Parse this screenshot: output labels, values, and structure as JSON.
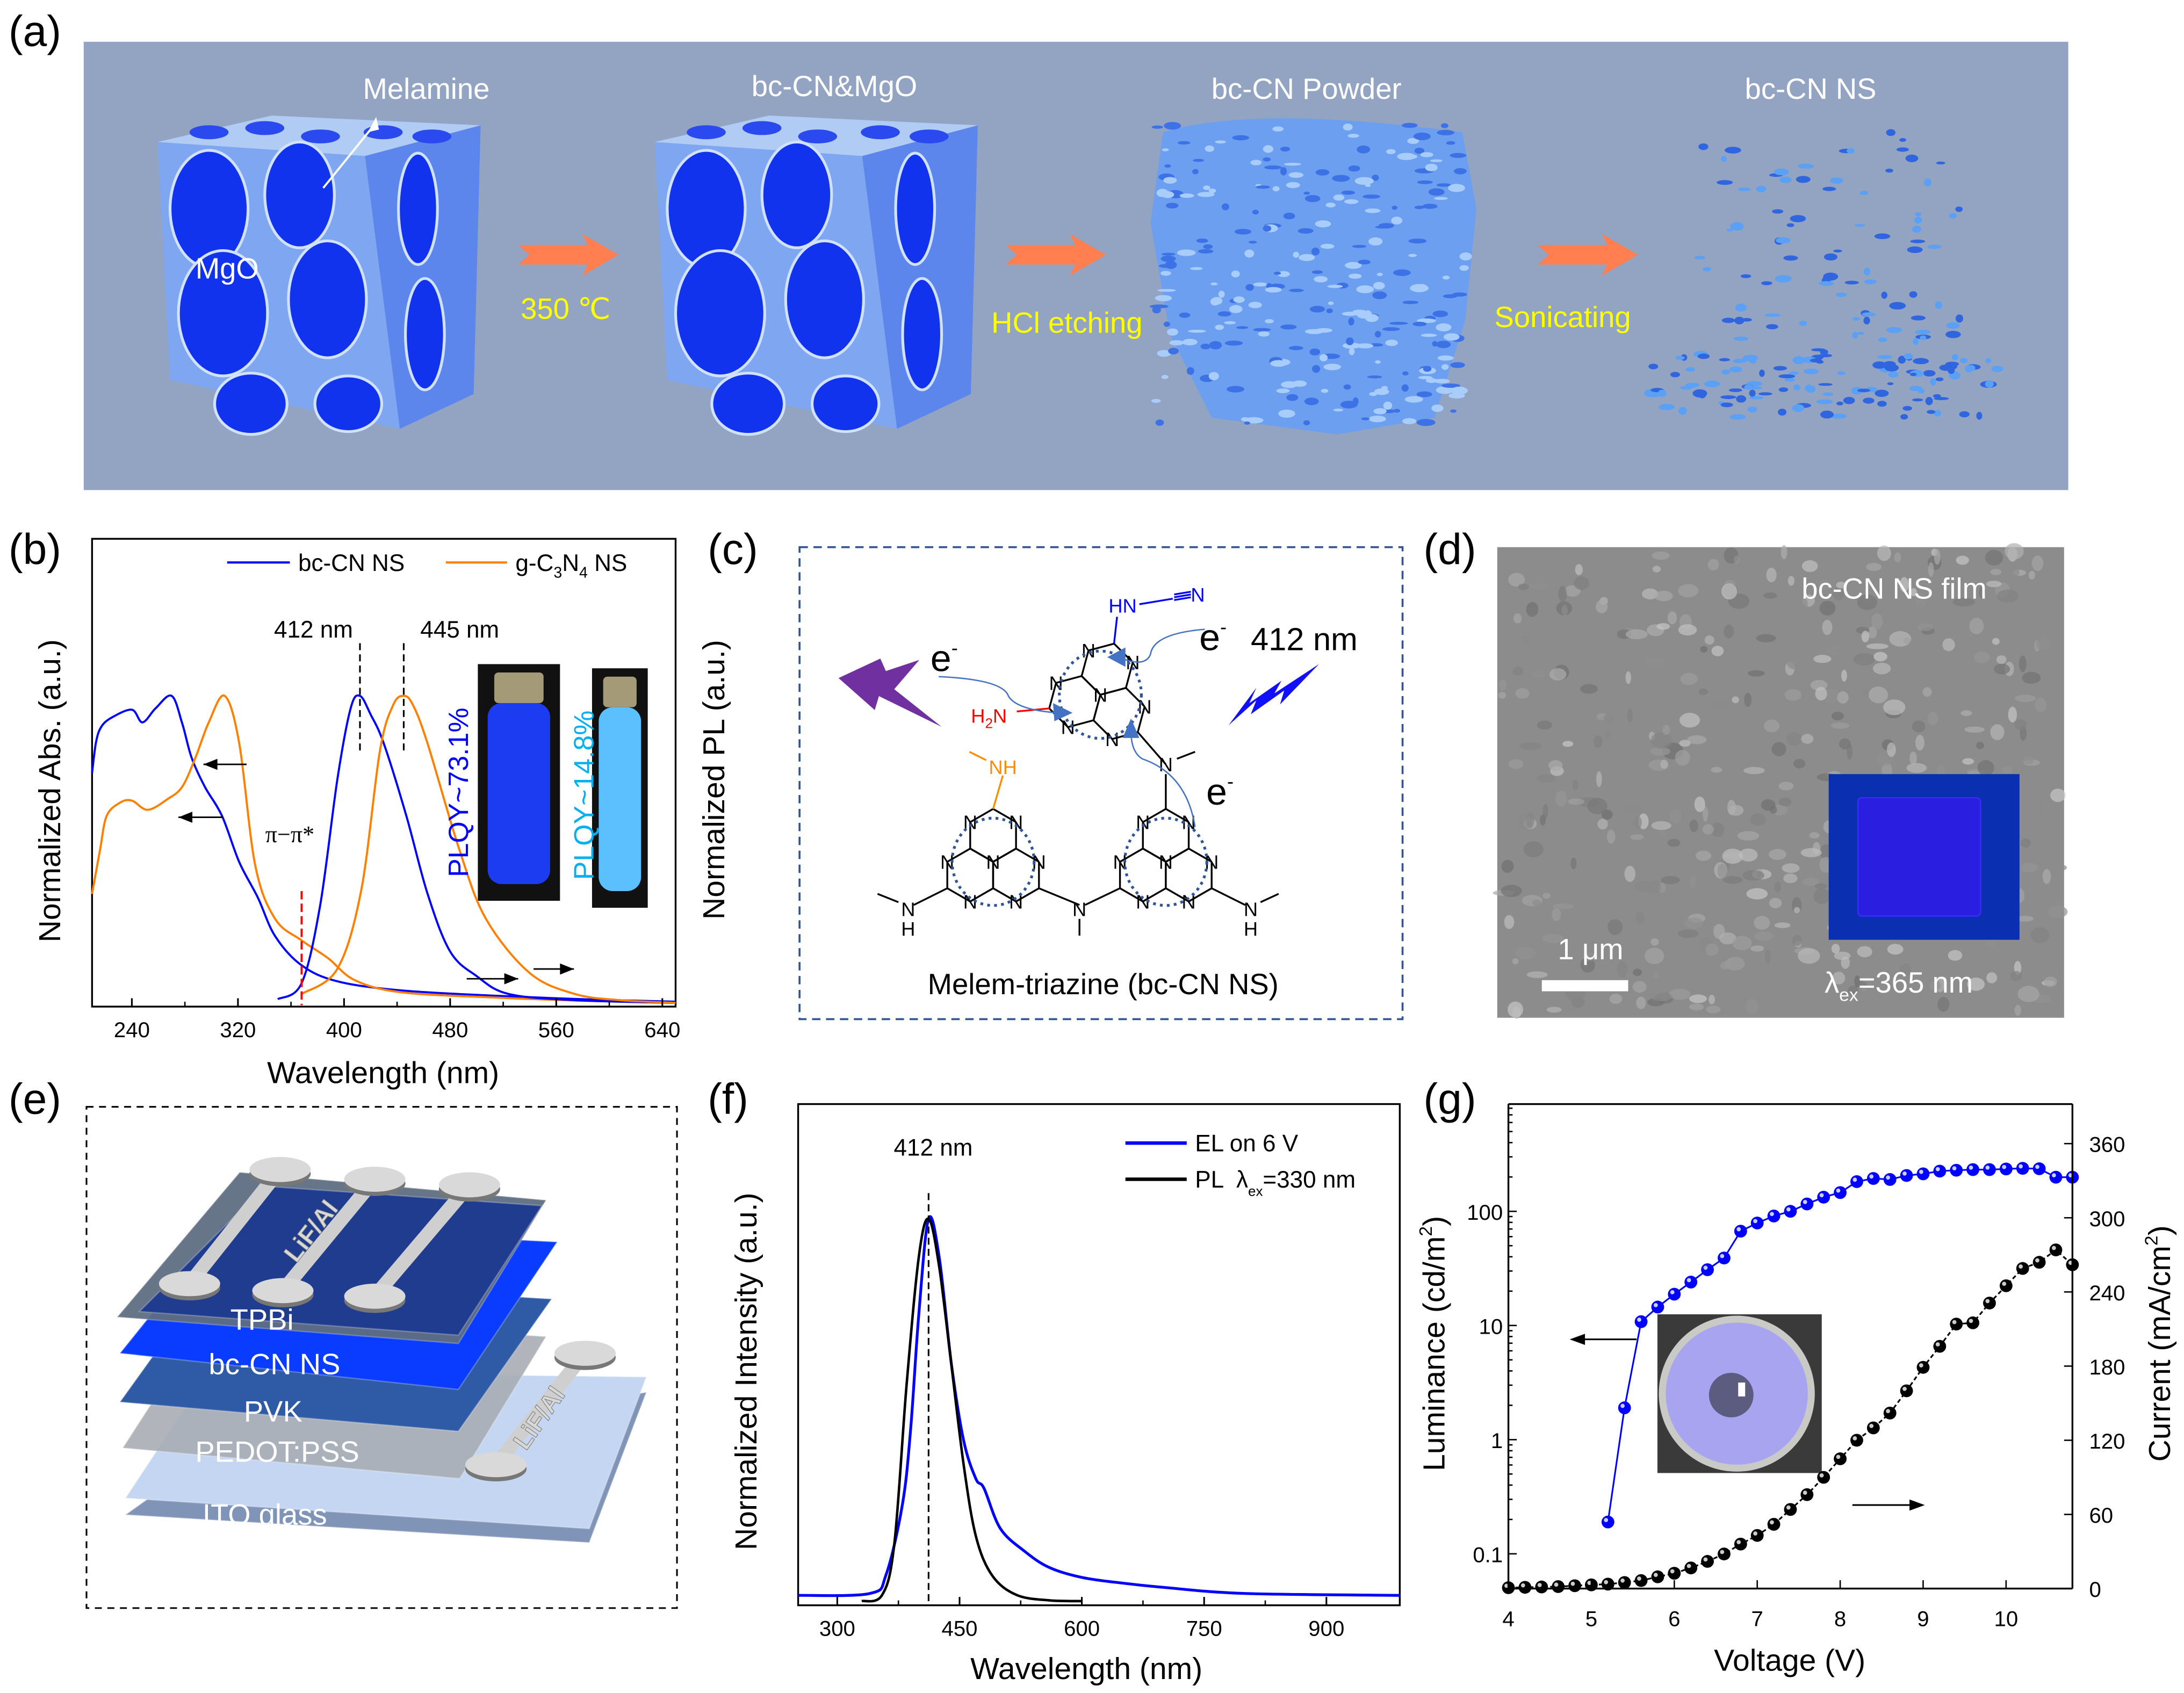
{
  "panel_labels": {
    "a": "(a)",
    "b": "(b)",
    "c": "(c)",
    "d": "(d)",
    "e": "(e)",
    "f": "(f)",
    "g": "(g)"
  },
  "panel_a": {
    "stages": [
      "Melamine",
      "bc-CN&MgO",
      "bc-CN Powder",
      "bc-CN NS"
    ],
    "mgo_label": "MgO",
    "steps": [
      "350 ℃",
      "HCl etching",
      "Sonicating"
    ],
    "colors": {
      "background": "#93a3c2",
      "step_text": "#ffff00",
      "arrow": "#ff7f50",
      "cube": "#1a3cf0"
    }
  },
  "panel_c": {
    "caption": "Melem-triazine (bc-CN NS)",
    "atom_N": "N",
    "atom_H": "H",
    "nh_label": "NH",
    "hn_label": "HN",
    "cyano_N": "N",
    "amine_H": "H",
    "amine_sub": "2",
    "amine_N": "N",
    "electron": "e",
    "electron_sup": "-",
    "emission": "412 nm",
    "colors": {
      "border": "#2f5597",
      "amine": "#ff0000",
      "nh": "#ff8c00",
      "cyano": "#0000ff",
      "excite_bolt": "#7030a0",
      "emit_bolt": "#1010ff"
    }
  },
  "panel_d": {
    "title": "bc-CN NS film",
    "scale_bar": "1 μm",
    "lambda": "λ",
    "lambda_sub": "ex",
    "lambda_value": "=365 nm"
  },
  "panel_e": {
    "layers": [
      "TPBi",
      "bc-CN NS",
      "PVK",
      "PEDOT:PSS",
      "ITO glass"
    ],
    "electrode": "LiF/Al"
  },
  "chart_data": [
    {
      "panel": "b",
      "type": "line",
      "xlabel": "Wavelength (nm)",
      "ylabel": "Normalized Abs. (a.u.)",
      "ylabel_right": "Normalized PL (a.u.)",
      "xlim": [
        210,
        650
      ],
      "ylim": [
        0,
        1.51
      ],
      "xticks": [
        240,
        320,
        400,
        480,
        560,
        640
      ],
      "grid": false,
      "legend": {
        "placement": "top-right",
        "entries": [
          {
            "parts": [
              "bc-CN NS"
            ],
            "color": "#0000ff"
          },
          {
            "parts": [
              "g-C",
              "3",
              "N",
              "4",
              " NS"
            ],
            "color": "#ff7f00"
          }
        ]
      },
      "annotations": {
        "peak1": "412 nm",
        "peak2": "445 nm",
        "transition": "π−π*",
        "plqy1": "PLQY~73.1%",
        "plqy2": "PLQY~14.8%"
      },
      "annotation_colors": {
        "plqy1": "#0000ff",
        "plqy2": "#00b0f0",
        "cutoff": "#ff0000"
      },
      "series": [
        {
          "legend": "bc-CN NS",
          "axis": "left",
          "color": "#0000ff",
          "points": [
            [
              210,
              0.75
            ],
            [
              213,
              0.85
            ],
            [
              217,
              0.9
            ],
            [
              225,
              0.93
            ],
            [
              240,
              0.955
            ],
            [
              248,
              0.914
            ],
            [
              258,
              0.96
            ],
            [
              270,
              1.0
            ],
            [
              278,
              0.91
            ],
            [
              285,
              0.8
            ],
            [
              295,
              0.705
            ],
            [
              308,
              0.61
            ],
            [
              321,
              0.46
            ],
            [
              335,
              0.345
            ],
            [
              348,
              0.22
            ],
            [
              368,
              0.125
            ],
            [
              395,
              0.073
            ],
            [
              442,
              0.044
            ],
            [
              510,
              0.027
            ],
            [
              580,
              0.015
            ],
            [
              650,
              0.007
            ]
          ]
        },
        {
          "legend": "g-C3N4 NS",
          "axis": "left",
          "color": "#ff7f00",
          "points": [
            [
              210,
              0.357
            ],
            [
              216,
              0.5
            ],
            [
              221,
              0.61
            ],
            [
              231,
              0.653
            ],
            [
              240,
              0.66
            ],
            [
              252,
              0.63
            ],
            [
              267,
              0.665
            ],
            [
              278,
              0.705
            ],
            [
              288,
              0.8
            ],
            [
              298,
              0.914
            ],
            [
              310,
              1.0
            ],
            [
              321,
              0.845
            ],
            [
              333,
              0.45
            ],
            [
              348,
              0.276
            ],
            [
              368,
              0.206
            ],
            [
              388,
              0.148
            ],
            [
              408,
              0.077
            ],
            [
              442,
              0.038
            ],
            [
              510,
              0.021
            ],
            [
              580,
              0.01
            ],
            [
              650,
              0.003
            ]
          ]
        },
        {
          "legend": "bc-CN NS",
          "axis": "right",
          "color": "#0000ff",
          "points": [
            [
              350,
              0.015
            ],
            [
              368,
              0.067
            ],
            [
              382,
              0.32
            ],
            [
              395,
              0.73
            ],
            [
              405,
              0.96
            ],
            [
              412,
              1.0
            ],
            [
              420,
              0.94
            ],
            [
              430,
              0.845
            ],
            [
              447,
              0.61
            ],
            [
              463,
              0.357
            ],
            [
              480,
              0.17
            ],
            [
              500,
              0.09
            ],
            [
              524,
              0.032
            ],
            [
              574,
              0.012
            ],
            [
              650,
              0.003
            ]
          ]
        },
        {
          "legend": "g-C3N4 NS",
          "axis": "right",
          "color": "#ff7f00",
          "points": [
            [
              368,
              0.032
            ],
            [
              395,
              0.114
            ],
            [
              413,
              0.37
            ],
            [
              427,
              0.82
            ],
            [
              437,
              0.97
            ],
            [
              445,
              1.0
            ],
            [
              452,
              0.97
            ],
            [
              463,
              0.845
            ],
            [
              487,
              0.5
            ],
            [
              507,
              0.276
            ],
            [
              540,
              0.1
            ],
            [
              574,
              0.032
            ],
            [
              608,
              0.012
            ],
            [
              650,
              0.003
            ]
          ]
        }
      ]
    },
    {
      "panel": "f",
      "type": "line",
      "xlabel": "Wavelength (nm)",
      "ylabel": "Normalized Intensity (a.u.)",
      "xlim": [
        252,
        990
      ],
      "ylim": [
        0,
        1.3
      ],
      "xticks": [
        300,
        450,
        600,
        750,
        900
      ],
      "grid": false,
      "annotations": {
        "peak": "412 nm"
      },
      "legend": {
        "placement": "top-right",
        "entries": [
          {
            "parts": [
              "EL on 6 V"
            ],
            "color": "#0000ff"
          },
          {
            "parts": [
              "PL  ",
              "λ",
              "ex",
              "=330 nm"
            ],
            "color": "#000000"
          }
        ]
      },
      "series": [
        {
          "legend": "EL on 6 V",
          "color": "#0000ff",
          "points": [
            [
              252,
              0.015
            ],
            [
              340,
              0.02
            ],
            [
              360,
              0.07
            ],
            [
              380,
              0.254
            ],
            [
              390,
              0.45
            ],
            [
              400,
              0.75
            ],
            [
              412,
              1.0
            ],
            [
              425,
              0.9
            ],
            [
              440,
              0.62
            ],
            [
              455,
              0.42
            ],
            [
              470,
              0.32
            ],
            [
              480,
              0.295
            ],
            [
              500,
              0.19
            ],
            [
              530,
              0.13
            ],
            [
              560,
              0.088
            ],
            [
              600,
              0.062
            ],
            [
              650,
              0.047
            ],
            [
              700,
              0.036
            ],
            [
              800,
              0.02
            ],
            [
              990,
              0.015
            ]
          ]
        },
        {
          "legend": "PL λex=330 nm",
          "color": "#000000",
          "points": [
            [
              330,
              0
            ],
            [
              355,
              0.016
            ],
            [
              370,
              0.15
            ],
            [
              385,
              0.565
            ],
            [
              400,
              0.9
            ],
            [
              412,
              1.0
            ],
            [
              425,
              0.875
            ],
            [
              440,
              0.617
            ],
            [
              455,
              0.357
            ],
            [
              470,
              0.17
            ],
            [
              490,
              0.067
            ],
            [
              520,
              0.016
            ],
            [
              560,
              0.002
            ],
            [
              600,
              0
            ]
          ]
        }
      ]
    },
    {
      "panel": "g",
      "type": "scatter",
      "xlabel": "Voltage (V)",
      "ylabel_parts": [
        "Luminance (cd/m",
        "2",
        ")"
      ],
      "ylabel_right_parts": [
        "Current (mA/cm",
        "2",
        ")"
      ],
      "xlim": [
        4,
        10.8
      ],
      "xticks": [
        4,
        5,
        6,
        7,
        8,
        9,
        10
      ],
      "ylim_left": [
        0.0496,
        870
      ],
      "yscale_left": "log",
      "yticks_left": [
        0.1,
        1,
        10,
        100
      ],
      "yticks_left_labels": [
        "0.1",
        "1",
        "10",
        "100"
      ],
      "ylim_right": [
        0,
        392
      ],
      "yticks_right": [
        0,
        60,
        120,
        180,
        240,
        300,
        360
      ],
      "grid": false,
      "series": [
        {
          "axis": "left",
          "color": "#0000ff",
          "x_start": 5.2,
          "x_step": 0.2,
          "values": [
            0.19,
            1.9,
            10.8,
            14.5,
            18.8,
            24,
            30.8,
            39,
            67,
            79,
            91,
            100,
            116,
            133,
            146,
            182,
            194,
            190,
            206,
            213,
            225,
            229,
            232,
            232,
            235,
            238,
            236,
            199,
            199
          ]
        },
        {
          "axis": "right",
          "color": "#000000",
          "x_start": 4.0,
          "x_step": 0.2,
          "values": [
            0.7,
            1,
            1.3,
            1.6,
            2.3,
            3,
            3.6,
            4.9,
            6.5,
            9.5,
            12.4,
            16.7,
            22,
            28,
            36,
            43,
            52,
            64,
            76,
            90,
            105,
            120,
            130,
            142,
            160,
            179,
            196,
            214,
            215,
            231,
            245,
            259,
            264,
            274,
            262
          ]
        }
      ]
    }
  ]
}
